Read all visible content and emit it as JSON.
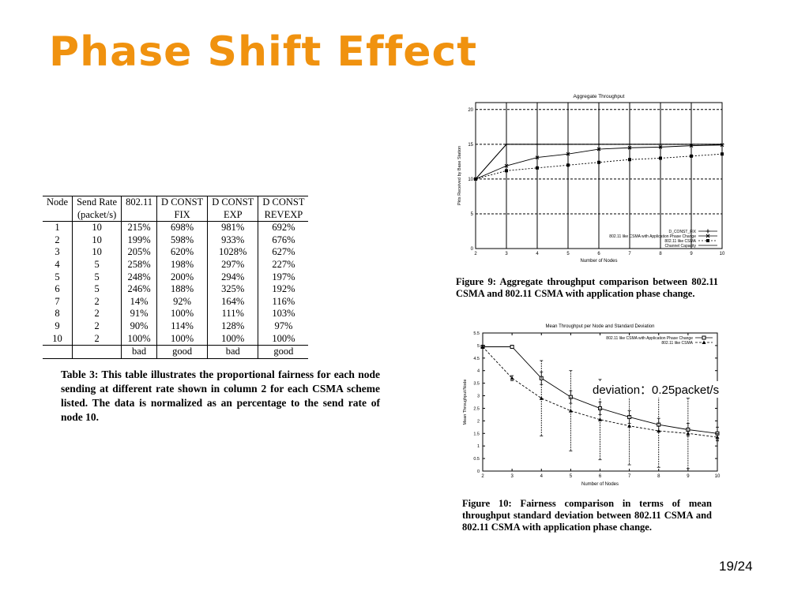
{
  "title": "Phase Shift Effect",
  "page_number": "19/24",
  "annotation": "deviation：0.25packet/s",
  "table": {
    "headers": [
      [
        "Node",
        ""
      ],
      [
        "Send Rate",
        "(packet/s)"
      ],
      [
        "802.11",
        ""
      ],
      [
        "D CONST",
        " FIX"
      ],
      [
        "D CONST",
        " EXP"
      ],
      [
        "D CONST",
        " REVEXP"
      ]
    ],
    "rows": [
      [
        "1",
        "10",
        "215%",
        "698%",
        "981%",
        "692%"
      ],
      [
        "2",
        "10",
        "199%",
        "598%",
        "933%",
        "676%"
      ],
      [
        "3",
        "10",
        "205%",
        "620%",
        "1028%",
        "627%"
      ],
      [
        "4",
        "5",
        "258%",
        "198%",
        "297%",
        "227%"
      ],
      [
        "5",
        "5",
        "248%",
        "200%",
        "294%",
        "197%"
      ],
      [
        "6",
        "5",
        "246%",
        "188%",
        "325%",
        "192%"
      ],
      [
        "7",
        "2",
        "14%",
        "92%",
        "164%",
        "116%"
      ],
      [
        "8",
        "2",
        "91%",
        "100%",
        "111%",
        "103%"
      ],
      [
        "9",
        "2",
        "90%",
        "114%",
        "128%",
        "97%"
      ],
      [
        "10",
        "2",
        "100%",
        "100%",
        "100%",
        "100%"
      ]
    ],
    "footer": [
      "",
      "",
      "bad",
      "good",
      "bad",
      "good"
    ]
  },
  "table_caption": "Table 3: This table illustrates the proportional fairness for each node sending at different rate shown in column 2 for each CSMA scheme listed. The data is normalized as an percentage to the send rate of node 10.",
  "fig9_caption": "Figure 9: Aggregate throughput comparison between 802.11 CSMA and 802.11 CSMA with application phase change.",
  "fig10_caption": "Figure 10: Fairness comparison in terms of mean throughput standard deviation between 802.11 CSMA and 802.11 CSMA with application phase change.",
  "chart_data": [
    {
      "type": "line",
      "title": "Aggregate Throughput",
      "xlabel": "Number of Nodes",
      "ylabel": "Pkts Received by Base Station",
      "xlim": [
        2,
        10
      ],
      "ylim": [
        0,
        21
      ],
      "x": [
        2,
        3,
        4,
        5,
        6,
        7,
        8,
        9,
        10
      ],
      "xticks": [
        "2",
        "3",
        "4",
        "5",
        "6",
        "7",
        "8",
        "9",
        "10"
      ],
      "yticks": [
        "0",
        "5",
        "10",
        "15",
        "20"
      ],
      "grid": true,
      "legend_position": "bottom-right",
      "series": [
        {
          "name": "D_CONST_FIX",
          "values": [
            10,
            15,
            15,
            15,
            15,
            15,
            15,
            15,
            15
          ]
        },
        {
          "name": "802.11 like CSMA with Application Phase Change",
          "values": [
            10,
            11.9,
            13.1,
            13.6,
            14.3,
            14.5,
            14.6,
            14.8,
            14.9
          ]
        },
        {
          "name": "802.11 like CSMA",
          "values": [
            10,
            11.2,
            11.6,
            12.0,
            12.4,
            12.8,
            13.0,
            13.3,
            13.6
          ]
        },
        {
          "name": "Channel Capacity",
          "values": [
            10,
            15,
            15,
            15,
            15,
            15,
            15,
            15,
            15
          ]
        }
      ]
    },
    {
      "type": "line",
      "title": "Mean Throughput per Node and Standard Deviation",
      "xlabel": "Number of Nodes",
      "ylabel": "Mean Throughput/Node",
      "xlim": [
        2,
        10
      ],
      "ylim": [
        0,
        5.5
      ],
      "x": [
        2,
        3,
        4,
        5,
        6,
        7,
        8,
        9,
        10
      ],
      "xticks": [
        "2",
        "3",
        "4",
        "5",
        "6",
        "7",
        "8",
        "9",
        "10"
      ],
      "yticks": [
        "0",
        "0.5",
        "1",
        "1.5",
        "2",
        "2.5",
        "3",
        "3.5",
        "4",
        "4.5",
        "5",
        "5.5"
      ],
      "legend_position": "top-right",
      "series": [
        {
          "name": "802.11 like CSMA with Application Phase Change",
          "values": [
            4.95,
            4.95,
            3.7,
            2.95,
            2.5,
            2.15,
            1.85,
            1.65,
            1.5
          ],
          "error": [
            0,
            0,
            0.25,
            0.25,
            0.25,
            0.25,
            0.25,
            0.25,
            0.25
          ]
        },
        {
          "name": "802.11 like CSMA",
          "values": [
            4.95,
            3.7,
            2.9,
            2.4,
            2.05,
            1.8,
            1.6,
            1.5,
            1.35
          ],
          "error": [
            0,
            0.1,
            1.5,
            1.6,
            1.6,
            1.55,
            1.45,
            1.4,
            0.15
          ]
        }
      ]
    }
  ]
}
